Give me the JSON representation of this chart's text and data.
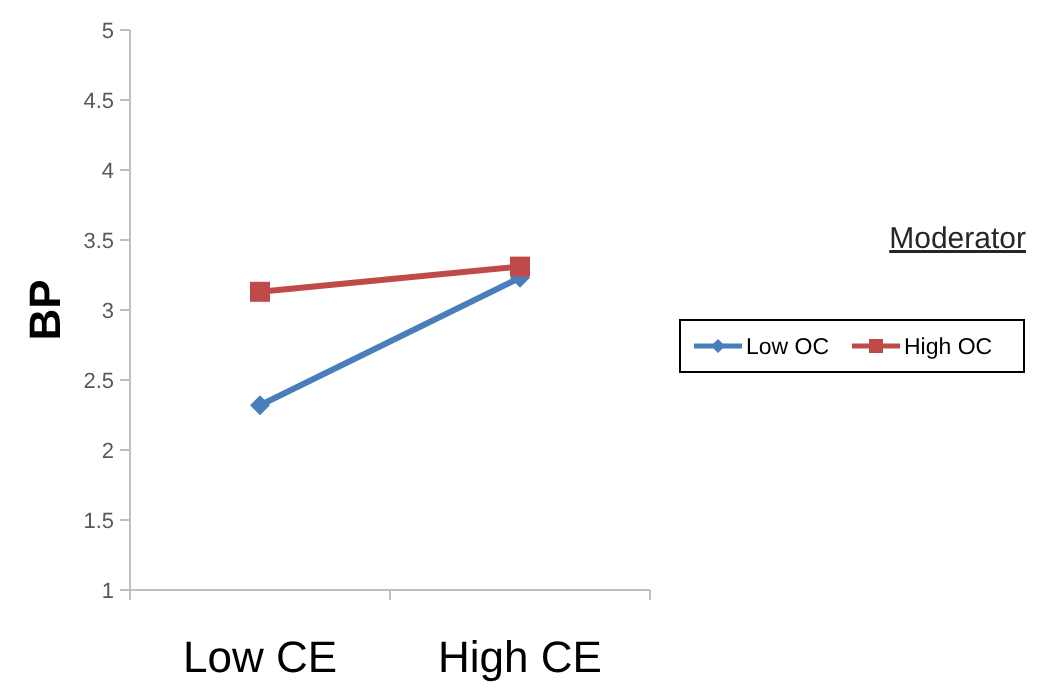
{
  "chart_data": {
    "type": "line",
    "ylabel": "BP",
    "legend_title": "Moderator",
    "legend": "right",
    "grid": false,
    "categories": [
      "Low CE",
      "High CE"
    ],
    "ylim": [
      1,
      5
    ],
    "yticks": [
      1,
      1.5,
      2,
      2.5,
      3,
      3.5,
      4,
      4.5,
      5
    ],
    "series": [
      {
        "name": "Low OC",
        "color": "#4a7ebb",
        "marker": "diamond",
        "values": [
          2.32,
          3.23
        ]
      },
      {
        "name": "High OC",
        "color": "#be4b48",
        "marker": "square",
        "values": [
          3.13,
          3.31
        ]
      }
    ]
  }
}
